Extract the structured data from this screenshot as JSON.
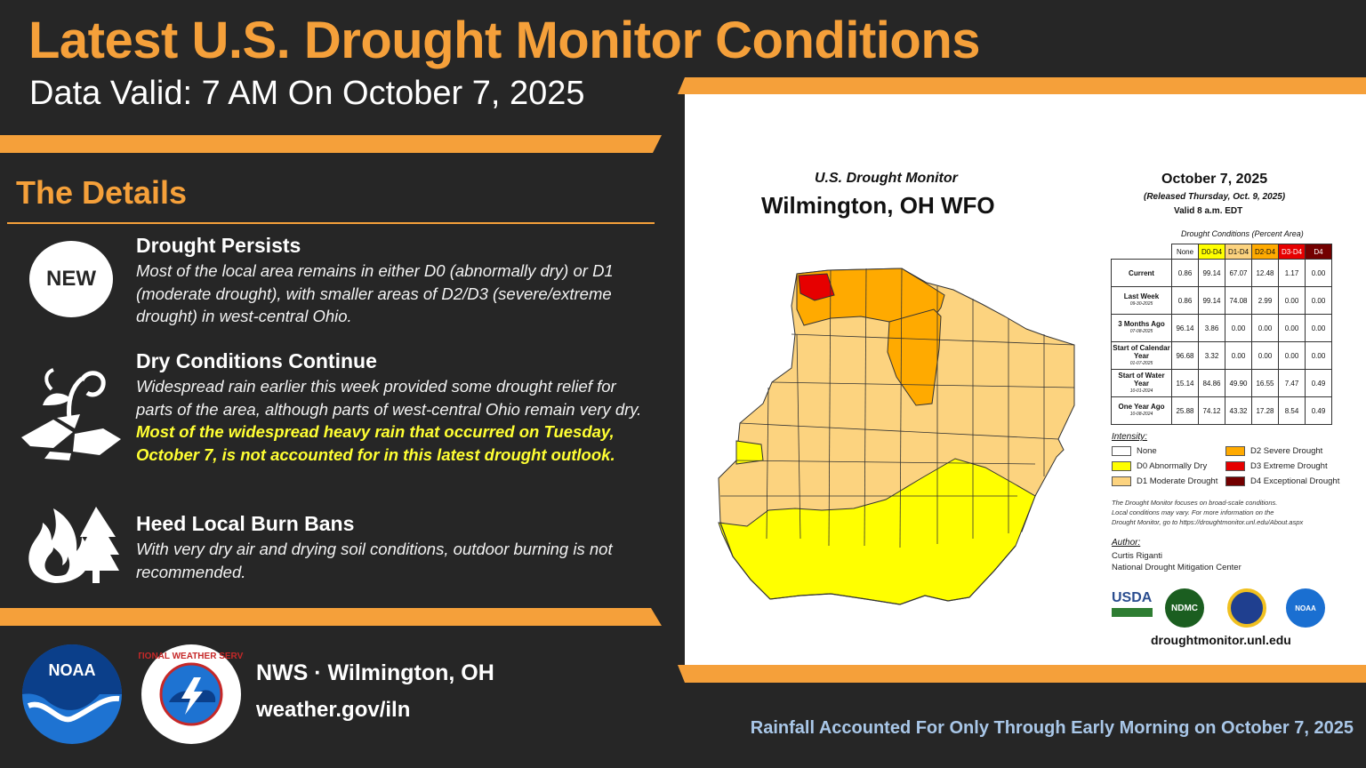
{
  "header": {
    "title": "Latest U.S. Drought Monitor Conditions",
    "subtitle": "Data Valid: 7 AM On October 7, 2025"
  },
  "details": {
    "heading": "The Details",
    "items": [
      {
        "icon": "new-badge-icon",
        "badge": "NEW",
        "title": "Drought Persists",
        "body": "Most of the local area remains in either D0 (abnormally dry) or D1 (moderate drought), with smaller areas of D2/D3 (severe/extreme drought) in west-central Ohio."
      },
      {
        "icon": "dry-plant-icon",
        "title": "Dry Conditions Continue",
        "body": "Widespread rain earlier this week provided some drought relief for parts of the area, although parts of west-central Ohio remain very dry. ",
        "highlight": "Most of the widespread heavy rain that occurred on Tuesday, October 7, is not accounted for in this latest drought outlook."
      },
      {
        "icon": "fire-tree-icon",
        "title": "Heed Local Burn Bans",
        "body": "With very dry air and drying soil conditions, outdoor burning is not recommended."
      }
    ]
  },
  "map": {
    "monitor_title": "U.S. Drought Monitor",
    "region": "Wilmington, OH WFO",
    "date": "October 7, 2025",
    "released": "(Released Thursday, Oct. 9, 2025)",
    "valid": "Valid 8 a.m. EDT",
    "table_caption": "Drought Conditions (Percent Area)",
    "columns": [
      "None",
      "D0-D4",
      "D1-D4",
      "D2-D4",
      "D3-D4",
      "D4"
    ],
    "column_colors": [
      "#ffffff",
      "#ffff00",
      "#fcd37f",
      "#ffaa00",
      "#e60000",
      "#730000"
    ],
    "rows": [
      {
        "label": "Current",
        "sub": "",
        "values": [
          "0.86",
          "99.14",
          "67.07",
          "12.48",
          "1.17",
          "0.00"
        ]
      },
      {
        "label": "Last Week",
        "sub": "09-30-2025",
        "values": [
          "0.86",
          "99.14",
          "74.08",
          "2.99",
          "0.00",
          "0.00"
        ]
      },
      {
        "label": "3 Months Ago",
        "sub": "07-08-2025",
        "values": [
          "96.14",
          "3.86",
          "0.00",
          "0.00",
          "0.00",
          "0.00"
        ]
      },
      {
        "label": "Start of Calendar Year",
        "sub": "01-07-2025",
        "values": [
          "96.68",
          "3.32",
          "0.00",
          "0.00",
          "0.00",
          "0.00"
        ]
      },
      {
        "label": "Start of Water Year",
        "sub": "10-01-2024",
        "values": [
          "15.14",
          "84.86",
          "49.90",
          "16.55",
          "7.47",
          "0.49"
        ]
      },
      {
        "label": "One Year Ago",
        "sub": "10-08-2024",
        "values": [
          "25.88",
          "74.12",
          "43.32",
          "17.28",
          "8.54",
          "0.49"
        ]
      }
    ],
    "intensity_label": "Intensity:",
    "legend": [
      {
        "label": "None",
        "color": "#ffffff"
      },
      {
        "label": "D0 Abnormally Dry",
        "color": "#ffff00"
      },
      {
        "label": "D1 Moderate Drought",
        "color": "#fcd37f"
      },
      {
        "label": "D2 Severe Drought",
        "color": "#ffaa00"
      },
      {
        "label": "D3 Extreme Drought",
        "color": "#e60000"
      },
      {
        "label": "D4 Exceptional Drought",
        "color": "#730000"
      }
    ],
    "disclaimer_1": "The Drought Monitor focuses on broad-scale conditions.",
    "disclaimer_2": "Local conditions may vary. For more information on the",
    "disclaimer_3": "Drought Monitor, go to https://droughtmonitor.unl.edu/About.aspx",
    "author_label": "Author:",
    "author_name": "Curtis Riganti",
    "author_org": "National Drought Mitigation Center",
    "logo_usda": "USDA",
    "logo_ndmc": "NDMC",
    "logo_noaa": "NOAA",
    "url": "droughtmonitor.unl.edu"
  },
  "footer": {
    "noaa_logo_text": "NOAA",
    "nws_logo_text": "NATIONAL WEATHER SERVICE",
    "office": "NWS · Wilmington, OH",
    "website": "weather.gov/iln",
    "note": "Rainfall Accounted For Only Through Early Morning on  October 7, 2025"
  },
  "colors": {
    "accent_orange": "#f5a03a",
    "background": "#262626",
    "highlight_yellow": "#ffff33",
    "footer_note_blue": "#a9c7e8"
  }
}
